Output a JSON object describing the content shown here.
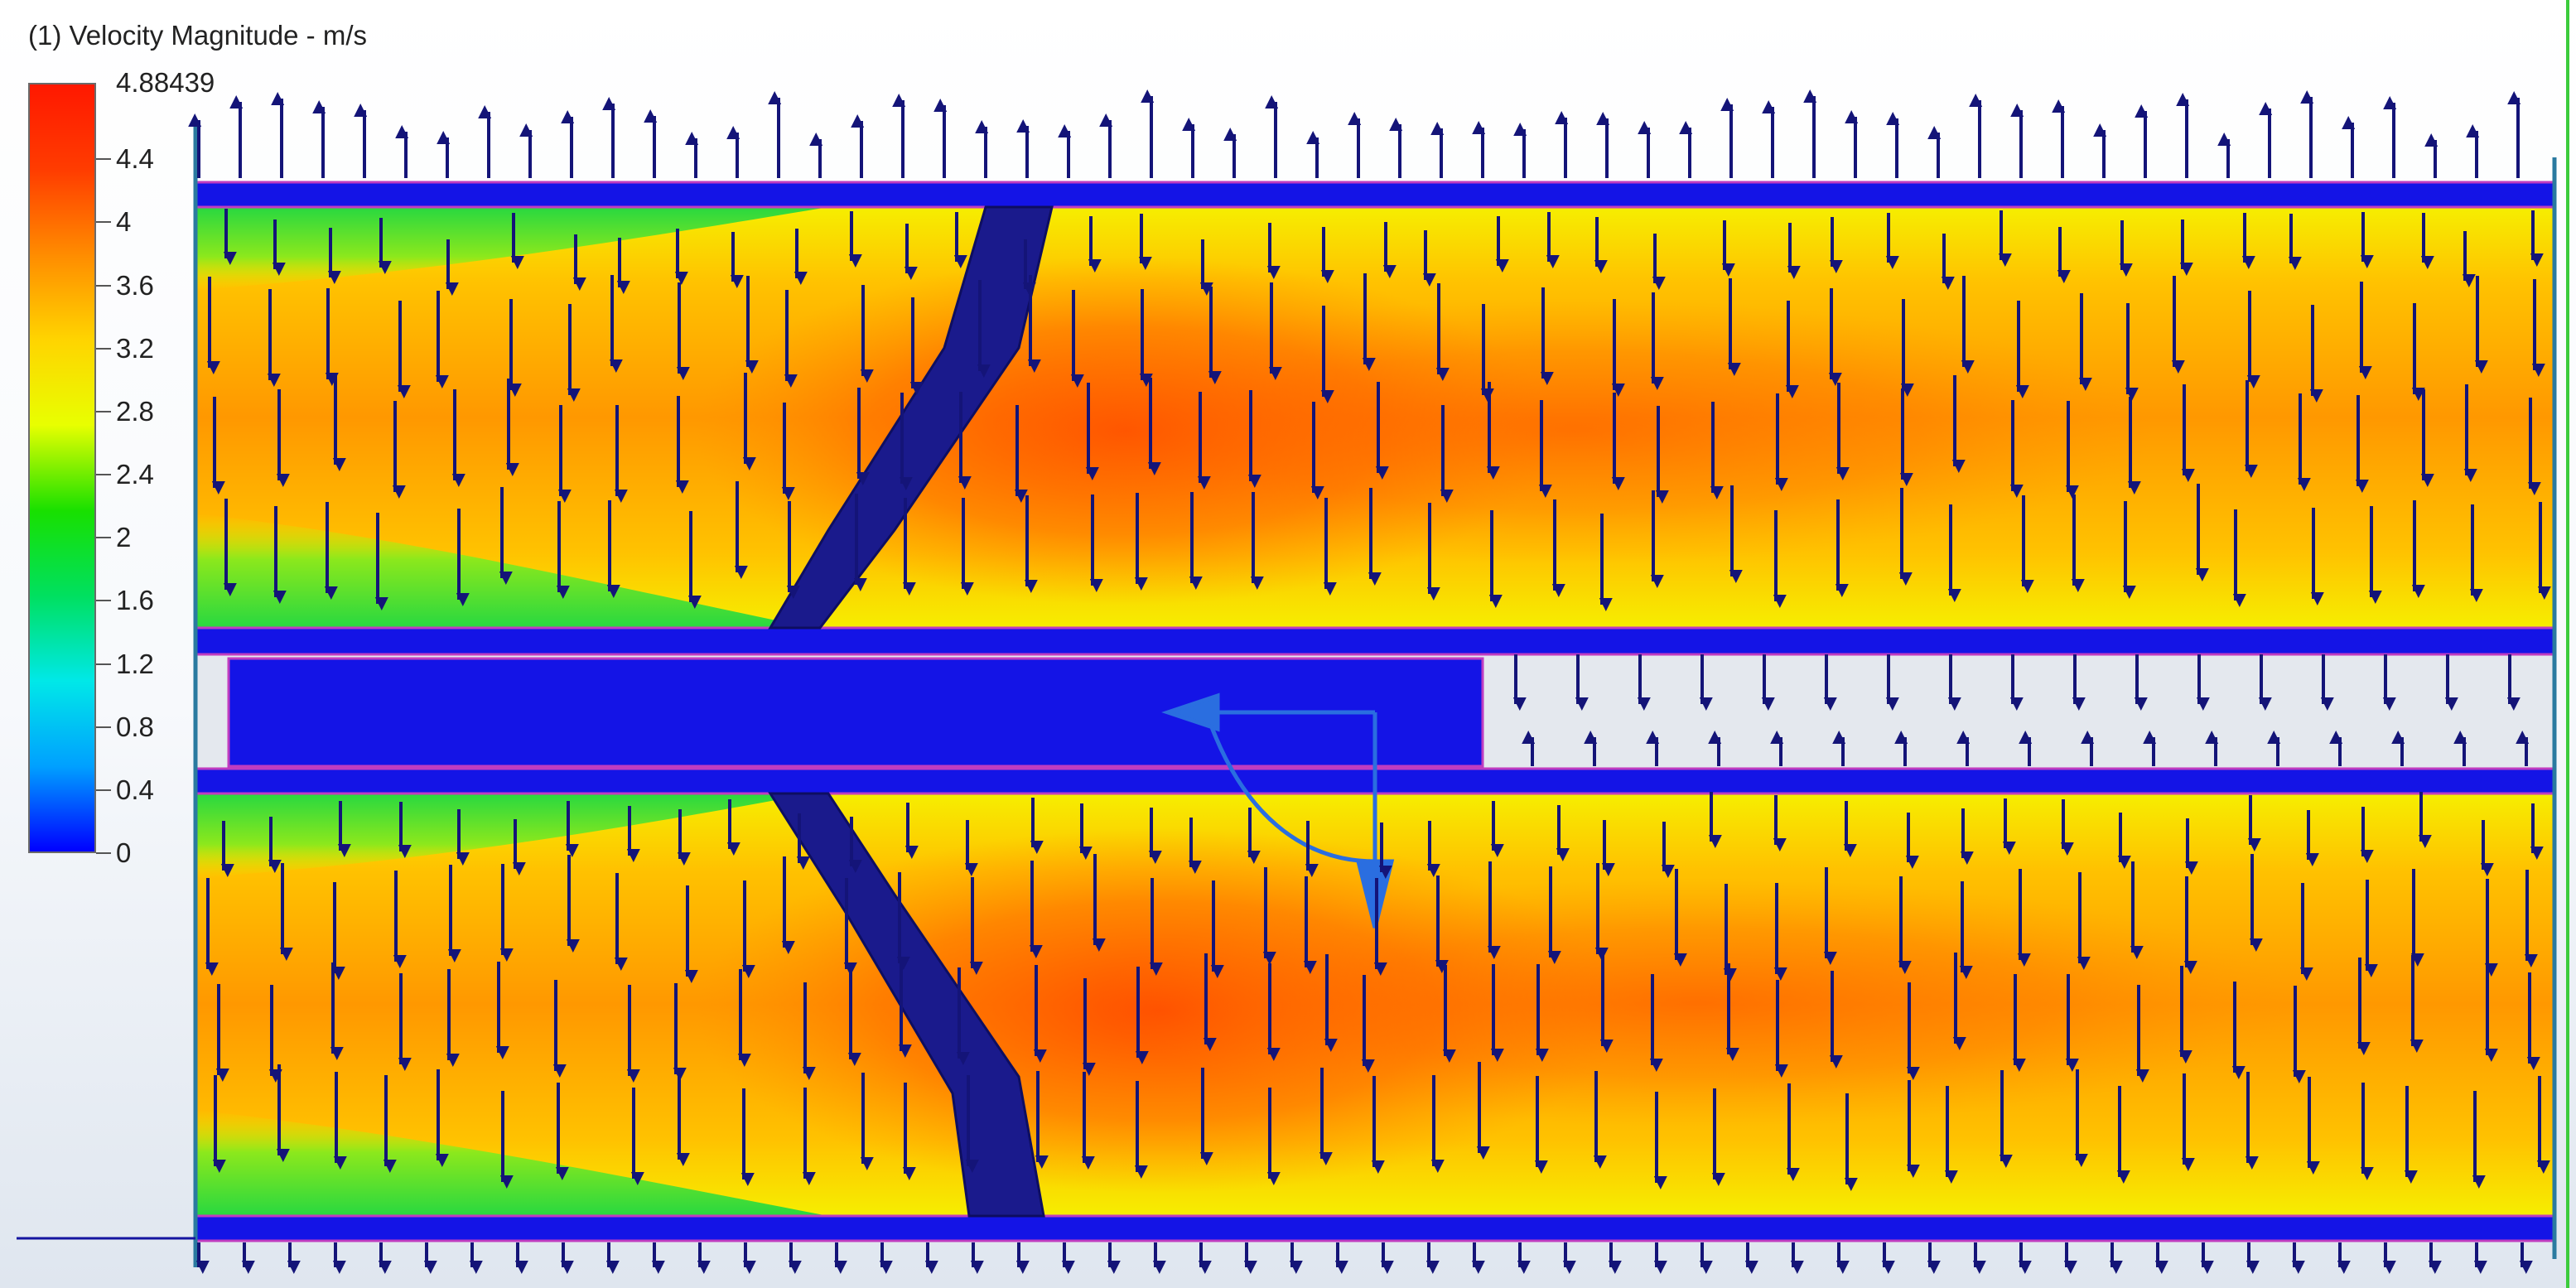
{
  "legend": {
    "title": "(1) Velocity Magnitude - m/s",
    "max_label": "4.88439",
    "ticks": [
      "4.4",
      "4",
      "3.6",
      "3.2",
      "2.8",
      "2.4",
      "2",
      "1.6",
      "1.2",
      "0.8",
      "0.4",
      "0"
    ],
    "tick_values": [
      4.4,
      4.0,
      3.6,
      3.2,
      2.8,
      2.4,
      2.0,
      1.6,
      1.2,
      0.8,
      0.4,
      0.0
    ],
    "max_value": 4.88439,
    "colormap": [
      "#0000ff",
      "#00a0ff",
      "#00e8e8",
      "#00e060",
      "#18e000",
      "#e8ff00",
      "#ffd400",
      "#ff8c00",
      "#ff3c00",
      "#ff1800"
    ]
  },
  "plot": {
    "bar_color": "#1414e6",
    "arrow_color": "#141478",
    "field_colors": {
      "green": "#3ee03a",
      "yellow": "#f6ee00",
      "orange": "#ff9c00",
      "red_orange": "#ff5a00"
    }
  }
}
